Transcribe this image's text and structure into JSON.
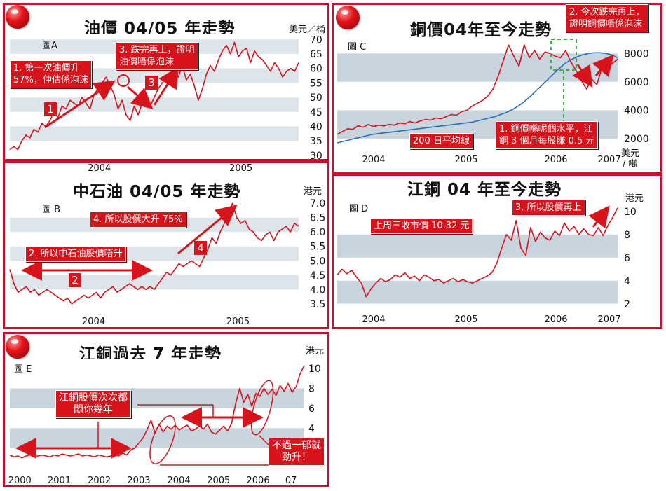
{
  "panels": {
    "a": {
      "title": "油價 04/05 年走勢",
      "label": "圖A",
      "unit": "美元／桶",
      "annotations": [
        "1. 第一次油價升",
        "57%，仲估係泡沫",
        "3. 跌完再上，證明",
        "油價唔係泡沫"
      ],
      "markers": [
        "1",
        "3"
      ]
    },
    "b": {
      "title": "中石油 04/05 年走勢",
      "label": "圖 B",
      "unit": "港元",
      "annotations": [
        "4. 所以股價大升 75%",
        "2. 所以中石油股價唔升"
      ],
      "markers": [
        "2",
        "4"
      ]
    },
    "c": {
      "title": "銅價04年至今走勢",
      "label": "圖 C",
      "unit": [
        "美元",
        "/ 噸"
      ],
      "annotations": [
        "2. 今次跌完再上，",
        "證明銅價唔係泡沫",
        "200 日平均線",
        "1. 銅價喺呢個水平，江",
        "銅 3 個月每股賺 0.5 元"
      ]
    },
    "d": {
      "title": "江銅 04 年至今走勢",
      "label": "圖 D",
      "unit": "港元",
      "annotations": [
        "上周三收市價 10.32 元",
        "3. 所以股價再上"
      ]
    },
    "e": {
      "title": "江銅過去 7 年走勢",
      "label": "圖 E",
      "unit": "港元",
      "annotations": [
        "江銅股價次次都",
        "悶你幾年",
        "不過一郁就",
        "勁升！"
      ]
    }
  },
  "chart_data": [
    {
      "id": "a",
      "type": "line",
      "title": "油價 04/05 年走勢",
      "ylabel": "美元／桶",
      "y_ticks": [
        30,
        35,
        40,
        45,
        50,
        55,
        60,
        65,
        70
      ],
      "ylim": [
        29,
        72
      ],
      "x_tick_labels": [
        "2004",
        "2005"
      ],
      "x_ticks_frac": [
        0.31,
        0.8
      ],
      "series": [
        {
          "values": [
            32,
            33,
            32,
            35,
            37,
            36,
            39,
            38,
            41,
            40,
            42,
            45,
            43,
            47,
            46,
            49,
            48,
            47,
            50,
            48,
            46,
            51,
            53,
            55,
            57,
            54,
            51,
            46,
            49,
            44,
            42,
            47,
            44,
            48,
            50,
            47,
            50,
            53,
            55,
            57,
            56,
            59,
            57,
            61,
            56,
            58,
            54,
            49,
            53,
            58,
            61,
            59,
            63,
            66,
            68,
            65,
            69,
            64,
            66,
            67,
            62,
            66,
            64,
            63,
            61,
            59,
            62,
            60,
            57,
            59,
            60,
            59,
            62
          ]
        }
      ]
    },
    {
      "id": "b",
      "type": "line",
      "title": "中石油 04/05 年走勢",
      "ylabel": "港元",
      "y_ticks": [
        3.5,
        4.0,
        4.5,
        5.0,
        5.5,
        6.0,
        6.5,
        7.0
      ],
      "ylim": [
        3.3,
        7.2
      ],
      "x_tick_labels": [
        "2004",
        "2005"
      ],
      "x_ticks_frac": [
        0.29,
        0.79
      ],
      "series": [
        {
          "values": [
            4.7,
            4.2,
            3.9,
            4.0,
            4.1,
            3.9,
            4.0,
            3.8,
            3.9,
            4.0,
            3.9,
            3.8,
            3.7,
            3.6,
            3.7,
            3.5,
            3.6,
            3.7,
            3.8,
            3.7,
            3.8,
            3.9,
            3.7,
            3.9,
            4.0,
            4.1,
            3.9,
            4.0,
            4.1,
            4.2,
            4.1,
            4.0,
            4.1,
            4.0,
            4.1,
            4.0,
            4.2,
            4.4,
            4.6,
            4.5,
            4.7,
            4.9,
            4.8,
            4.9,
            5.0,
            4.9,
            4.8,
            5.1,
            5.4,
            5.8,
            5.6,
            6.0,
            6.3,
            6.7,
            7.0,
            6.5,
            6.3,
            6.4,
            6.1,
            6.0,
            5.8,
            5.7,
            5.9,
            6.0,
            5.7,
            6.0,
            6.1,
            6.2,
            6.0,
            6.3,
            6.2
          ]
        }
      ]
    },
    {
      "id": "c",
      "type": "line",
      "title": "銅價04年至今走勢",
      "ylabel": "美元 / 噸",
      "y_ticks": [
        2000,
        4000,
        6000,
        8000
      ],
      "ylim": [
        1800,
        9000
      ],
      "x_tick_labels": [
        "2004",
        "2005",
        "2006",
        "2007"
      ],
      "x_ticks_frac": [
        0.13,
        0.46,
        0.78,
        0.97
      ],
      "series": [
        {
          "name": "銅價",
          "values": [
            2300,
            2500,
            2700,
            2650,
            2900,
            2800,
            3000,
            2850,
            2950,
            2900,
            3000,
            2950,
            3100,
            3050,
            3200,
            3100,
            3250,
            3350,
            3300,
            3450,
            3400,
            3550,
            3700,
            3650,
            3900,
            4000,
            4300,
            4500,
            4700,
            5000,
            5500,
            6400,
            7500,
            8600,
            7800,
            7100,
            8600,
            7700,
            8200,
            7600,
            8100,
            8000,
            7800,
            7700,
            8200,
            7400,
            6800,
            6100,
            5500,
            6200,
            5800,
            7000,
            6900,
            7300,
            7600
          ]
        },
        {
          "name": "200 日平均線",
          "values": [
            1700,
            1800,
            1900,
            2000,
            2100,
            2200,
            2300,
            2350,
            2400,
            2450,
            2500,
            2550,
            2600,
            2650,
            2700,
            2750,
            2800,
            2850,
            2900,
            2950,
            3000,
            3050,
            3100,
            3150,
            3250,
            3350,
            3450,
            3550,
            3700,
            3850,
            4050,
            4300,
            4600,
            4950,
            5350,
            5750,
            6150,
            6550,
            6950,
            7300,
            7550,
            7750,
            7900,
            8000,
            8050,
            8050,
            8000,
            7900,
            7700
          ]
        }
      ]
    },
    {
      "id": "d",
      "type": "line",
      "title": "江銅 04 年至今走勢",
      "ylabel": "港元",
      "y_ticks": [
        2,
        4,
        6,
        8,
        10
      ],
      "ylim": [
        1.5,
        11.2
      ],
      "x_tick_labels": [
        "2004",
        "2005",
        "2006",
        "2007"
      ],
      "x_ticks_frac": [
        0.13,
        0.46,
        0.78,
        0.97
      ],
      "series": [
        {
          "values": [
            4.5,
            5.0,
            4.6,
            4.9,
            4.3,
            3.8,
            2.6,
            3.3,
            3.8,
            4.2,
            3.9,
            4.1,
            4.5,
            4.3,
            4.7,
            4.2,
            4.4,
            4.0,
            4.5,
            4.3,
            4.0,
            4.1,
            3.8,
            4.0,
            4.2,
            3.9,
            4.1,
            3.9,
            3.8,
            4.0,
            4.2,
            4.4,
            4.7,
            5.5,
            6.8,
            8.0,
            7.5,
            9.2,
            6.8,
            6.2,
            8.6,
            7.4,
            8.2,
            7.7,
            7.5,
            8.3,
            7.9,
            9.0,
            8.3,
            8.7,
            8.0,
            8.5,
            8.0,
            7.9,
            8.6,
            7.9,
            8.8,
            9.5,
            10.3
          ]
        }
      ]
    },
    {
      "id": "e",
      "type": "line",
      "title": "江銅過去 7 年走勢",
      "ylabel": "港元",
      "y_ticks": [
        2,
        4,
        6,
        8,
        10
      ],
      "ylim": [
        0,
        11
      ],
      "x_tick_labels": [
        "2000",
        "2001",
        "2002",
        "2003",
        "2004",
        "2005",
        "2006",
        "07"
      ],
      "x_ticks_frac": [
        0.034,
        0.168,
        0.304,
        0.438,
        0.574,
        0.709,
        0.843,
        0.955
      ],
      "series": [
        {
          "values": [
            1.3,
            1.1,
            1.2,
            1.0,
            1.2,
            1.3,
            1.1,
            1.2,
            1.3,
            1.2,
            1.1,
            1.3,
            1.2,
            1.4,
            1.3,
            1.2,
            1.3,
            1.4,
            1.2,
            1.3,
            1.2,
            1.1,
            1.3,
            1.2,
            1.1,
            1.2,
            1.3,
            1.2,
            1.5,
            1.3,
            1.8,
            2.0,
            2.5,
            3.0,
            3.8,
            4.8,
            3.5,
            4.4,
            3.6,
            4.2,
            3.9,
            4.3,
            3.8,
            4.1,
            4.3,
            3.7,
            3.9,
            4.2,
            3.9,
            4.4,
            3.6,
            3.4,
            3.8,
            4.2,
            3.7,
            4.5,
            6.5,
            8.0,
            6.6,
            7.4,
            6.2,
            7.5,
            7.2,
            8.0,
            7.4,
            7.9,
            7.3,
            8.3,
            7.7,
            8.5,
            7.6,
            8.2,
            9.5,
            10.3
          ]
        }
      ]
    }
  ]
}
